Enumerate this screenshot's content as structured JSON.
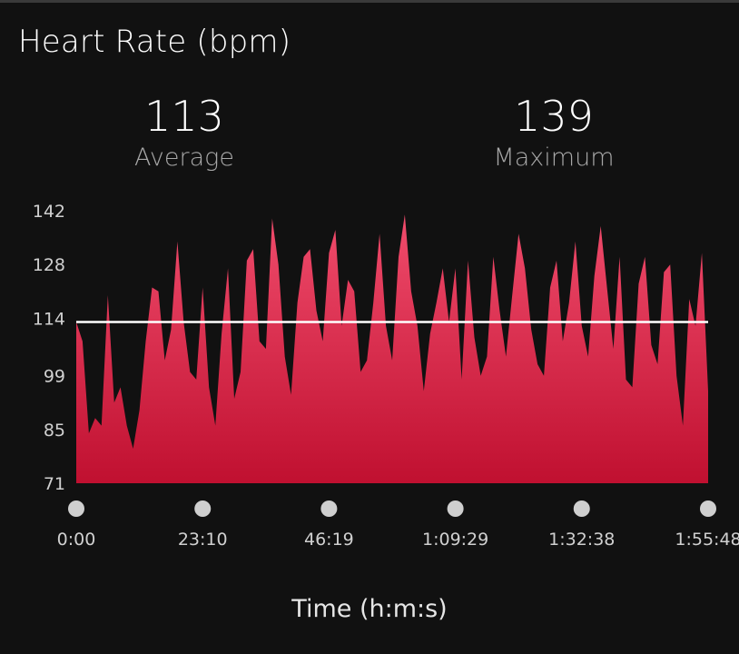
{
  "title": "Heart Rate (bpm)",
  "stats": {
    "average": {
      "value": "113",
      "label": "Average"
    },
    "maximum": {
      "value": "139",
      "label": "Maximum"
    }
  },
  "colors": {
    "background": "#111111",
    "fill_top": "#f04c6c",
    "fill_bottom": "#c01030",
    "average_line": "#ffffff",
    "tick_text": "#d0d0d0",
    "marker": "#cfcfcf"
  },
  "chart_data": {
    "type": "area",
    "title": "Heart Rate (bpm)",
    "xlabel": "Time (h:m:s)",
    "ylabel": "",
    "ylim": [
      71,
      142
    ],
    "xlim_seconds": [
      0,
      6948
    ],
    "y_ticks": [
      "142",
      "128",
      "114",
      "99",
      "85",
      "71"
    ],
    "y_tick_values": [
      142,
      128,
      114,
      99,
      85,
      71
    ],
    "x_ticks": [
      "0:00",
      "23:10",
      "46:19",
      "1:09:29",
      "1:32:38",
      "1:55:48"
    ],
    "x_tick_values": [
      0,
      1390,
      2779,
      4169,
      5558,
      6948
    ],
    "average": 113,
    "maximum": 139,
    "grid": false,
    "legend": "none",
    "series": [
      {
        "x": [
          "0:00",
          "1:09",
          "2:19",
          "3:28",
          "4:38",
          "5:47",
          "6:57",
          "8:06",
          "9:16",
          "10:25",
          "11:35",
          "12:44",
          "13:54",
          "15:03",
          "16:13",
          "17:22",
          "18:32",
          "19:41",
          "20:51",
          "22:00",
          "23:10",
          "24:19",
          "25:29",
          "26:38",
          "27:48",
          "28:57",
          "30:07",
          "31:16",
          "32:26",
          "33:35",
          "34:45",
          "35:54",
          "37:03",
          "38:13",
          "39:22",
          "40:32",
          "41:41",
          "42:51",
          "44:00",
          "45:10",
          "46:19",
          "47:29",
          "48:38",
          "49:48",
          "50:57",
          "52:07",
          "53:16",
          "54:26",
          "55:35",
          "56:45",
          "57:54",
          "59:04",
          "1:00:13",
          "1:01:23",
          "1:02:32",
          "1:03:41",
          "1:04:51",
          "1:06:00",
          "1:07:10",
          "1:08:19",
          "1:09:29",
          "1:10:38",
          "1:11:48",
          "1:12:57",
          "1:14:07",
          "1:15:16",
          "1:16:26",
          "1:17:35",
          "1:18:45",
          "1:19:54",
          "1:21:04",
          "1:22:13",
          "1:23:23",
          "1:24:32",
          "1:25:42",
          "1:26:51",
          "1:28:01",
          "1:29:10",
          "1:30:19",
          "1:31:29",
          "1:32:38",
          "1:33:48",
          "1:34:57",
          "1:36:07",
          "1:37:16",
          "1:38:26",
          "1:39:35",
          "1:40:45",
          "1:41:54",
          "1:43:04",
          "1:44:13",
          "1:45:23",
          "1:46:32",
          "1:47:42",
          "1:48:51",
          "1:50:01",
          "1:51:10",
          "1:52:20",
          "1:53:29",
          "1:54:39",
          "1:55:48"
        ],
        "values": [
          113,
          108,
          84,
          88,
          86,
          120,
          92,
          96,
          86,
          80,
          90,
          108,
          122,
          121,
          103,
          111,
          134,
          113,
          100,
          98,
          122,
          96,
          86,
          110,
          127,
          93,
          100,
          129,
          132,
          108,
          106,
          140,
          128,
          104,
          94,
          118,
          130,
          132,
          116,
          108,
          131,
          137,
          112,
          124,
          121,
          100,
          103,
          118,
          136,
          112,
          103,
          130,
          141,
          121,
          112,
          95,
          110,
          118,
          127,
          113,
          127,
          98,
          129,
          109,
          99,
          104,
          130,
          116,
          104,
          120,
          136,
          127,
          111,
          102,
          99,
          122,
          129,
          108,
          118,
          134,
          112,
          104,
          125,
          138,
          122,
          106,
          130,
          98,
          96,
          123,
          130,
          107,
          102,
          126,
          128,
          99,
          86,
          119,
          112,
          131,
          95
        ]
      }
    ]
  }
}
